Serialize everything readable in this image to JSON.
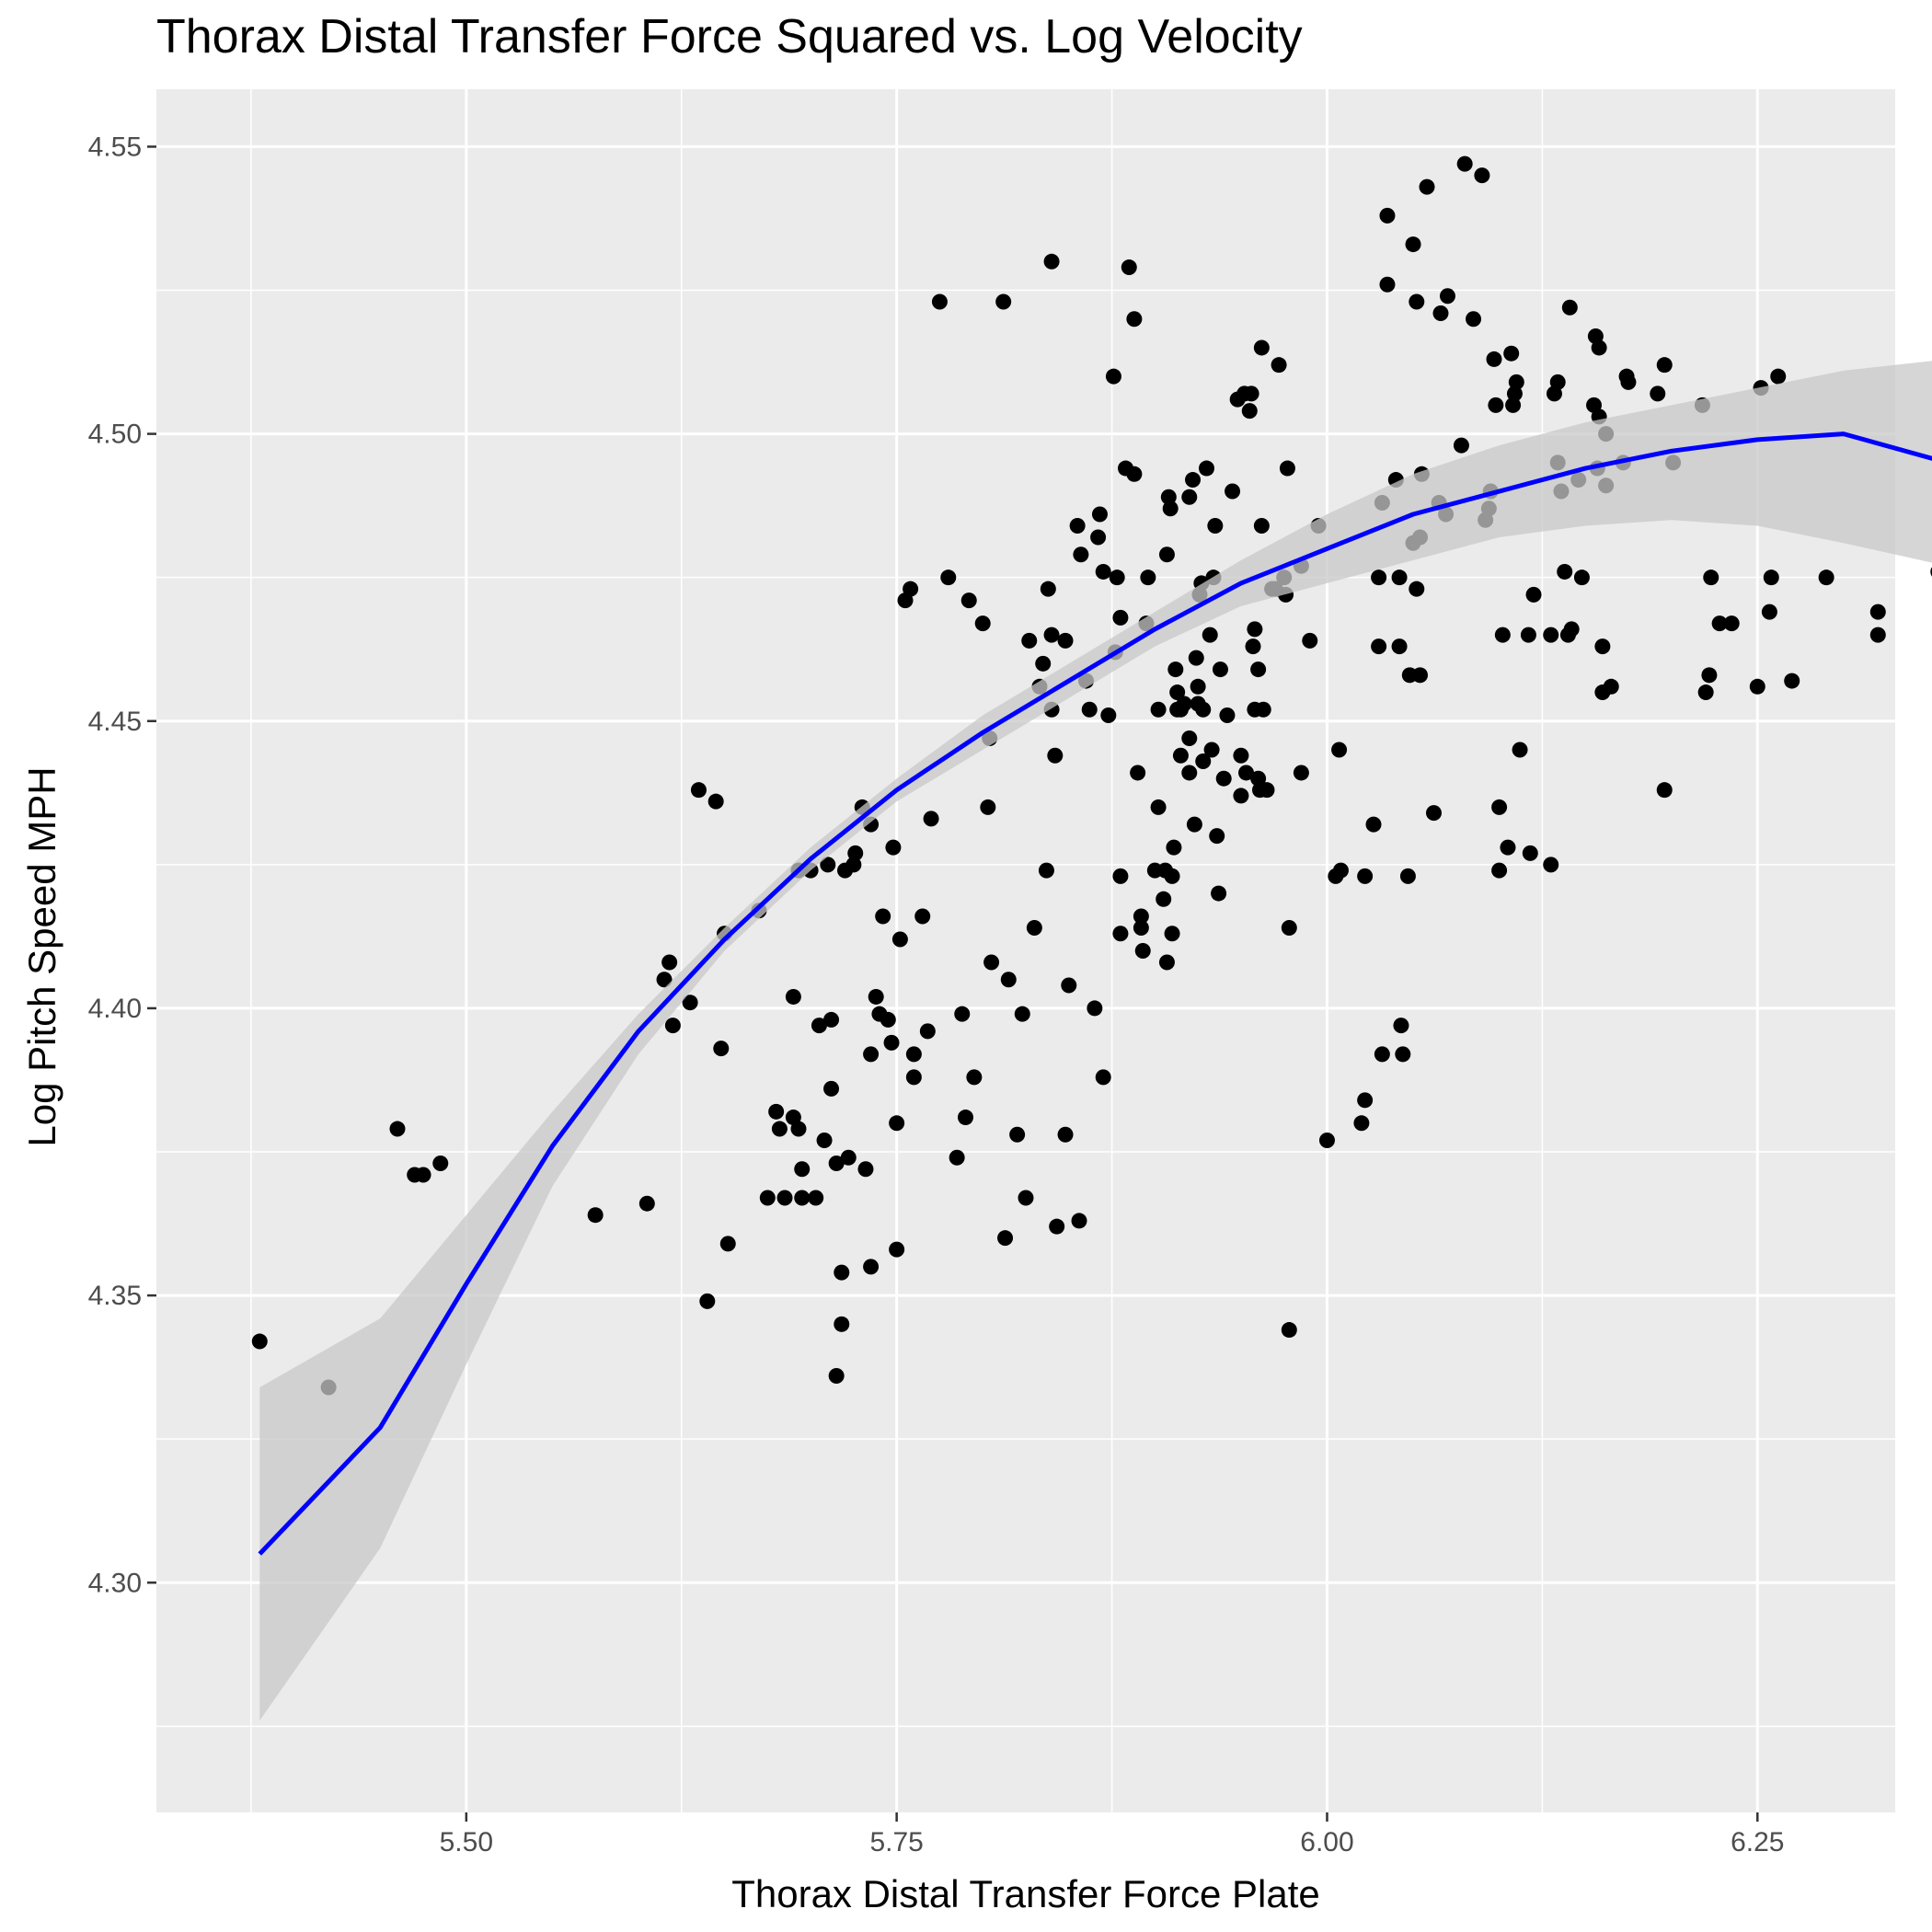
{
  "chart_data": {
    "type": "scatter",
    "title": "Thorax Distal Transfer Force Squared vs. Log Velocity",
    "xlabel": "Thorax Distal Transfer Force Plate",
    "ylabel": "Log Pitch Speed MPH",
    "xlim": [
      5.32,
      6.33
    ],
    "ylim": [
      4.26,
      4.56
    ],
    "x_ticks": [
      "5.50",
      "5.75",
      "6.00",
      "6.25"
    ],
    "y_ticks": [
      "4.30",
      "4.35",
      "4.40",
      "4.45",
      "4.50",
      "4.55"
    ],
    "grid": true,
    "background": "#ebebeb",
    "point_color": "#000000",
    "fit_color": "#0000ff",
    "band_color": "#c8c8c8",
    "points": [
      [
        5.38,
        4.342
      ],
      [
        5.42,
        4.334
      ],
      [
        5.46,
        4.379
      ],
      [
        5.47,
        4.371
      ],
      [
        5.475,
        4.371
      ],
      [
        5.485,
        4.373
      ],
      [
        5.575,
        4.364
      ],
      [
        5.605,
        4.366
      ],
      [
        5.615,
        4.405
      ],
      [
        5.618,
        4.408
      ],
      [
        5.62,
        4.397
      ],
      [
        5.63,
        4.401
      ],
      [
        5.635,
        4.438
      ],
      [
        5.64,
        4.349
      ],
      [
        5.645,
        4.436
      ],
      [
        5.648,
        4.393
      ],
      [
        5.65,
        4.413
      ],
      [
        5.652,
        4.359
      ],
      [
        5.67,
        4.417
      ],
      [
        5.675,
        4.367
      ],
      [
        5.68,
        4.382
      ],
      [
        5.682,
        4.379
      ],
      [
        5.685,
        4.367
      ],
      [
        5.69,
        4.402
      ],
      [
        5.69,
        4.381
      ],
      [
        5.693,
        4.379
      ],
      [
        5.693,
        4.424
      ],
      [
        5.695,
        4.372
      ],
      [
        5.695,
        4.367
      ],
      [
        5.7,
        4.424
      ],
      [
        5.703,
        4.367
      ],
      [
        5.705,
        4.397
      ],
      [
        5.708,
        4.377
      ],
      [
        5.71,
        4.425
      ],
      [
        5.712,
        4.398
      ],
      [
        5.712,
        4.386
      ],
      [
        5.715,
        4.373
      ],
      [
        5.715,
        4.336
      ],
      [
        5.718,
        4.354
      ],
      [
        5.718,
        4.345
      ],
      [
        5.72,
        4.424
      ],
      [
        5.722,
        4.374
      ],
      [
        5.725,
        4.425
      ],
      [
        5.726,
        4.427
      ],
      [
        5.73,
        4.435
      ],
      [
        5.732,
        4.372
      ],
      [
        5.735,
        4.432
      ],
      [
        5.735,
        4.392
      ],
      [
        5.735,
        4.355
      ],
      [
        5.738,
        4.402
      ],
      [
        5.74,
        4.399
      ],
      [
        5.742,
        4.416
      ],
      [
        5.745,
        4.398
      ],
      [
        5.747,
        4.394
      ],
      [
        5.748,
        4.428
      ],
      [
        5.75,
        4.38
      ],
      [
        5.75,
        4.358
      ],
      [
        5.752,
        4.412
      ],
      [
        5.755,
        4.471
      ],
      [
        5.758,
        4.473
      ],
      [
        5.76,
        4.392
      ],
      [
        5.76,
        4.388
      ],
      [
        5.765,
        4.416
      ],
      [
        5.768,
        4.396
      ],
      [
        5.77,
        4.433
      ],
      [
        5.775,
        4.523
      ],
      [
        5.78,
        4.475
      ],
      [
        5.785,
        4.374
      ],
      [
        5.788,
        4.399
      ],
      [
        5.79,
        4.381
      ],
      [
        5.792,
        4.471
      ],
      [
        5.795,
        4.388
      ],
      [
        5.8,
        4.467
      ],
      [
        5.803,
        4.435
      ],
      [
        5.804,
        4.447
      ],
      [
        5.805,
        4.408
      ],
      [
        5.812,
        4.523
      ],
      [
        5.813,
        4.36
      ],
      [
        5.815,
        4.405
      ],
      [
        5.82,
        4.378
      ],
      [
        5.823,
        4.399
      ],
      [
        5.825,
        4.367
      ],
      [
        5.827,
        4.464
      ],
      [
        5.83,
        4.414
      ],
      [
        5.833,
        4.456
      ],
      [
        5.835,
        4.46
      ],
      [
        5.837,
        4.424
      ],
      [
        5.838,
        4.473
      ],
      [
        5.84,
        4.452
      ],
      [
        5.84,
        4.465
      ],
      [
        5.84,
        4.53
      ],
      [
        5.842,
        4.444
      ],
      [
        5.843,
        4.362
      ],
      [
        5.848,
        4.378
      ],
      [
        5.848,
        4.464
      ],
      [
        5.85,
        4.404
      ],
      [
        5.855,
        4.484
      ],
      [
        5.856,
        4.363
      ],
      [
        5.857,
        4.479
      ],
      [
        5.86,
        4.457
      ],
      [
        5.862,
        4.452
      ],
      [
        5.865,
        4.4
      ],
      [
        5.867,
        4.482
      ],
      [
        5.868,
        4.486
      ],
      [
        5.87,
        4.476
      ],
      [
        5.87,
        4.388
      ],
      [
        5.873,
        4.451
      ],
      [
        5.876,
        4.51
      ],
      [
        5.877,
        4.462
      ],
      [
        5.878,
        4.475
      ],
      [
        5.88,
        4.468
      ],
      [
        5.88,
        4.413
      ],
      [
        5.88,
        4.423
      ],
      [
        5.883,
        4.494
      ],
      [
        5.885,
        4.529
      ],
      [
        5.888,
        4.52
      ],
      [
        5.888,
        4.493
      ],
      [
        5.89,
        4.441
      ],
      [
        5.892,
        4.414
      ],
      [
        5.892,
        4.416
      ],
      [
        5.893,
        4.41
      ],
      [
        5.895,
        4.467
      ],
      [
        5.896,
        4.475
      ],
      [
        5.9,
        4.424
      ],
      [
        5.902,
        4.452
      ],
      [
        5.902,
        4.435
      ],
      [
        5.905,
        4.419
      ],
      [
        5.906,
        4.424
      ],
      [
        5.907,
        4.408
      ],
      [
        5.907,
        4.479
      ],
      [
        5.908,
        4.489
      ],
      [
        5.909,
        4.487
      ],
      [
        5.91,
        4.413
      ],
      [
        5.91,
        4.423
      ],
      [
        5.911,
        4.428
      ],
      [
        5.912,
        4.459
      ],
      [
        5.913,
        4.455
      ],
      [
        5.913,
        4.452
      ],
      [
        5.915,
        4.452
      ],
      [
        5.915,
        4.444
      ],
      [
        5.917,
        4.453
      ],
      [
        5.92,
        4.447
      ],
      [
        5.92,
        4.489
      ],
      [
        5.92,
        4.441
      ],
      [
        5.922,
        4.492
      ],
      [
        5.923,
        4.432
      ],
      [
        5.924,
        4.461
      ],
      [
        5.925,
        4.453
      ],
      [
        5.925,
        4.456
      ],
      [
        5.926,
        4.472
      ],
      [
        5.927,
        4.474
      ],
      [
        5.928,
        4.452
      ],
      [
        5.928,
        4.443
      ],
      [
        5.93,
        4.494
      ],
      [
        5.932,
        4.465
      ],
      [
        5.933,
        4.445
      ],
      [
        5.934,
        4.475
      ],
      [
        5.935,
        4.484
      ],
      [
        5.936,
        4.43
      ],
      [
        5.937,
        4.42
      ],
      [
        5.938,
        4.459
      ],
      [
        5.94,
        4.44
      ],
      [
        5.942,
        4.451
      ],
      [
        5.945,
        4.49
      ],
      [
        5.948,
        4.506
      ],
      [
        5.95,
        4.444
      ],
      [
        5.95,
        4.437
      ],
      [
        5.952,
        4.507
      ],
      [
        5.953,
        4.441
      ],
      [
        5.955,
        4.504
      ],
      [
        5.956,
        4.507
      ],
      [
        5.957,
        4.463
      ],
      [
        5.958,
        4.452
      ],
      [
        5.958,
        4.466
      ],
      [
        5.96,
        4.459
      ],
      [
        5.96,
        4.44
      ],
      [
        5.961,
        4.438
      ],
      [
        5.962,
        4.484
      ],
      [
        5.962,
        4.515
      ],
      [
        5.963,
        4.452
      ],
      [
        5.965,
        4.438
      ],
      [
        5.968,
        4.473
      ],
      [
        5.97,
        4.473
      ],
      [
        5.972,
        4.512
      ],
      [
        5.975,
        4.475
      ],
      [
        5.976,
        4.472
      ],
      [
        5.977,
        4.494
      ],
      [
        5.978,
        4.414
      ],
      [
        5.978,
        4.344
      ],
      [
        5.985,
        4.441
      ],
      [
        5.985,
        4.477
      ],
      [
        5.99,
        4.464
      ],
      [
        5.995,
        4.484
      ],
      [
        6.0,
        4.377
      ],
      [
        6.005,
        4.423
      ],
      [
        6.007,
        4.445
      ],
      [
        6.008,
        4.424
      ],
      [
        6.02,
        4.38
      ],
      [
        6.022,
        4.423
      ],
      [
        6.022,
        4.384
      ],
      [
        6.027,
        4.432
      ],
      [
        6.03,
        4.475
      ],
      [
        6.03,
        4.463
      ],
      [
        6.032,
        4.488
      ],
      [
        6.032,
        4.392
      ],
      [
        6.035,
        4.538
      ],
      [
        6.035,
        4.526
      ],
      [
        6.04,
        4.492
      ],
      [
        6.042,
        4.475
      ],
      [
        6.042,
        4.463
      ],
      [
        6.043,
        4.397
      ],
      [
        6.044,
        4.392
      ],
      [
        6.047,
        4.423
      ],
      [
        6.048,
        4.458
      ],
      [
        6.05,
        4.533
      ],
      [
        6.05,
        4.481
      ],
      [
        6.052,
        4.473
      ],
      [
        6.052,
        4.523
      ],
      [
        6.054,
        4.482
      ],
      [
        6.054,
        4.458
      ],
      [
        6.055,
        4.493
      ],
      [
        6.058,
        4.543
      ],
      [
        6.062,
        4.434
      ],
      [
        6.065,
        4.488
      ],
      [
        6.066,
        4.521
      ],
      [
        6.069,
        4.486
      ],
      [
        6.07,
        4.524
      ],
      [
        6.078,
        4.498
      ],
      [
        6.08,
        4.547
      ],
      [
        6.085,
        4.52
      ],
      [
        6.09,
        4.545
      ],
      [
        6.092,
        4.485
      ],
      [
        6.094,
        4.487
      ],
      [
        6.095,
        4.49
      ],
      [
        6.097,
        4.513
      ],
      [
        6.098,
        4.505
      ],
      [
        6.1,
        4.424
      ],
      [
        6.1,
        4.435
      ],
      [
        6.102,
        4.465
      ],
      [
        6.105,
        4.428
      ],
      [
        6.107,
        4.514
      ],
      [
        6.108,
        4.505
      ],
      [
        6.109,
        4.507
      ],
      [
        6.11,
        4.509
      ],
      [
        6.112,
        4.445
      ],
      [
        6.117,
        4.465
      ],
      [
        6.118,
        4.427
      ],
      [
        6.12,
        4.472
      ],
      [
        6.13,
        4.465
      ],
      [
        6.13,
        4.425
      ],
      [
        6.132,
        4.507
      ],
      [
        6.134,
        4.495
      ],
      [
        6.134,
        4.509
      ],
      [
        6.136,
        4.49
      ],
      [
        6.138,
        4.476
      ],
      [
        6.14,
        4.465
      ],
      [
        6.141,
        4.522
      ],
      [
        6.142,
        4.466
      ],
      [
        6.146,
        4.492
      ],
      [
        6.148,
        4.475
      ],
      [
        6.155,
        4.505
      ],
      [
        6.156,
        4.517
      ],
      [
        6.157,
        4.494
      ],
      [
        6.158,
        4.515
      ],
      [
        6.158,
        4.503
      ],
      [
        6.16,
        4.455
      ],
      [
        6.16,
        4.463
      ],
      [
        6.162,
        4.5
      ],
      [
        6.162,
        4.491
      ],
      [
        6.165,
        4.456
      ],
      [
        6.172,
        4.495
      ],
      [
        6.174,
        4.51
      ],
      [
        6.175,
        4.509
      ],
      [
        6.192,
        4.507
      ],
      [
        6.196,
        4.512
      ],
      [
        6.196,
        4.438
      ],
      [
        6.201,
        4.495
      ],
      [
        6.218,
        4.505
      ],
      [
        6.22,
        4.455
      ],
      [
        6.222,
        4.458
      ],
      [
        6.223,
        4.475
      ],
      [
        6.228,
        4.467
      ],
      [
        6.235,
        4.467
      ],
      [
        6.25,
        4.456
      ],
      [
        6.252,
        4.508
      ],
      [
        6.257,
        4.469
      ],
      [
        6.258,
        4.475
      ],
      [
        6.262,
        4.51
      ],
      [
        6.27,
        4.457
      ],
      [
        6.29,
        4.475
      ],
      [
        6.32,
        4.469
      ],
      [
        6.32,
        4.465
      ],
      [
        6.355,
        4.476
      ],
      [
        6.36,
        4.476
      ]
    ],
    "fit": [
      [
        5.38,
        4.305
      ],
      [
        5.45,
        4.327
      ],
      [
        5.5,
        4.352
      ],
      [
        5.55,
        4.376
      ],
      [
        5.6,
        4.396
      ],
      [
        5.65,
        4.412
      ],
      [
        5.7,
        4.426
      ],
      [
        5.75,
        4.438
      ],
      [
        5.8,
        4.448
      ],
      [
        5.85,
        4.457
      ],
      [
        5.9,
        4.466
      ],
      [
        5.95,
        4.474
      ],
      [
        6.0,
        4.48
      ],
      [
        6.05,
        4.486
      ],
      [
        6.1,
        4.49
      ],
      [
        6.15,
        4.494
      ],
      [
        6.2,
        4.497
      ],
      [
        6.25,
        4.499
      ],
      [
        6.3,
        4.5
      ],
      [
        6.36,
        4.495
      ]
    ],
    "band_upper": [
      [
        5.38,
        4.334
      ],
      [
        5.45,
        4.346
      ],
      [
        5.5,
        4.364
      ],
      [
        5.55,
        4.382
      ],
      [
        5.6,
        4.399
      ],
      [
        5.65,
        4.414
      ],
      [
        5.7,
        4.428
      ],
      [
        5.75,
        4.44
      ],
      [
        5.8,
        4.451
      ],
      [
        5.85,
        4.46
      ],
      [
        5.9,
        4.469
      ],
      [
        5.95,
        4.478
      ],
      [
        6.0,
        4.486
      ],
      [
        6.05,
        4.493
      ],
      [
        6.1,
        4.498
      ],
      [
        6.15,
        4.502
      ],
      [
        6.2,
        4.505
      ],
      [
        6.25,
        4.508
      ],
      [
        6.3,
        4.511
      ],
      [
        6.36,
        4.513
      ]
    ],
    "band_lower": [
      [
        5.38,
        4.276
      ],
      [
        5.45,
        4.306
      ],
      [
        5.5,
        4.338
      ],
      [
        5.55,
        4.369
      ],
      [
        5.6,
        4.392
      ],
      [
        5.65,
        4.41
      ],
      [
        5.7,
        4.424
      ],
      [
        5.75,
        4.436
      ],
      [
        5.8,
        4.445
      ],
      [
        5.85,
        4.454
      ],
      [
        5.9,
        4.463
      ],
      [
        5.95,
        4.47
      ],
      [
        6.0,
        4.474
      ],
      [
        6.05,
        4.478
      ],
      [
        6.1,
        4.482
      ],
      [
        6.15,
        4.484
      ],
      [
        6.2,
        4.485
      ],
      [
        6.25,
        4.484
      ],
      [
        6.3,
        4.481
      ],
      [
        6.36,
        4.477
      ]
    ]
  }
}
